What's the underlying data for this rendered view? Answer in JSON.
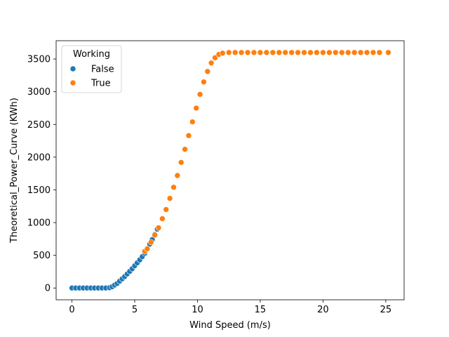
{
  "chart_data": {
    "type": "scatter",
    "title": "",
    "xlabel": "Wind Speed (m/s)",
    "ylabel": "Theoretical_Power_Curve (KWh)",
    "xlim": [
      -1.26,
      26.46
    ],
    "ylim": [
      -180,
      3780
    ],
    "x_ticks": [
      0,
      5,
      10,
      15,
      20,
      25
    ],
    "y_ticks": [
      0,
      500,
      1000,
      1500,
      2000,
      2500,
      3000,
      3500
    ],
    "grid": false,
    "legend": {
      "title": "Working",
      "placement": "upper-left"
    },
    "series": [
      {
        "name": "False",
        "color": "#1f77b4",
        "points": [
          [
            0.0,
            0
          ],
          [
            0.3,
            0
          ],
          [
            0.6,
            0
          ],
          [
            0.9,
            0
          ],
          [
            1.2,
            0
          ],
          [
            1.5,
            0
          ],
          [
            1.8,
            0
          ],
          [
            2.1,
            0
          ],
          [
            2.4,
            0
          ],
          [
            2.7,
            0
          ],
          [
            3.0,
            5
          ],
          [
            3.2,
            20
          ],
          [
            3.4,
            45
          ],
          [
            3.6,
            70
          ],
          [
            3.8,
            105
          ],
          [
            4.0,
            140
          ],
          [
            4.2,
            175
          ],
          [
            4.4,
            215
          ],
          [
            4.6,
            255
          ],
          [
            4.8,
            295
          ],
          [
            5.0,
            340
          ],
          [
            5.2,
            385
          ],
          [
            5.4,
            430
          ],
          [
            5.6,
            480
          ],
          [
            5.8,
            530
          ],
          [
            6.0,
            600
          ],
          [
            6.2,
            670
          ],
          [
            6.4,
            740
          ],
          [
            6.6,
            820
          ],
          [
            6.8,
            900
          ]
        ]
      },
      {
        "name": "True",
        "color": "#ff7f0e",
        "points": [
          [
            5.8,
            560
          ],
          [
            6.0,
            600
          ],
          [
            6.3,
            700
          ],
          [
            6.6,
            810
          ],
          [
            6.9,
            920
          ],
          [
            7.2,
            1060
          ],
          [
            7.5,
            1200
          ],
          [
            7.8,
            1370
          ],
          [
            8.1,
            1540
          ],
          [
            8.4,
            1720
          ],
          [
            8.7,
            1920
          ],
          [
            9.0,
            2120
          ],
          [
            9.3,
            2330
          ],
          [
            9.6,
            2540
          ],
          [
            9.9,
            2750
          ],
          [
            10.2,
            2960
          ],
          [
            10.5,
            3150
          ],
          [
            10.8,
            3310
          ],
          [
            11.1,
            3440
          ],
          [
            11.4,
            3520
          ],
          [
            11.7,
            3570
          ],
          [
            12.0,
            3590
          ],
          [
            12.5,
            3600
          ],
          [
            13.0,
            3600
          ],
          [
            13.5,
            3600
          ],
          [
            14.0,
            3600
          ],
          [
            14.5,
            3600
          ],
          [
            15.0,
            3600
          ],
          [
            15.5,
            3600
          ],
          [
            16.0,
            3600
          ],
          [
            16.5,
            3600
          ],
          [
            17.0,
            3600
          ],
          [
            17.5,
            3600
          ],
          [
            18.0,
            3600
          ],
          [
            18.5,
            3600
          ],
          [
            19.0,
            3600
          ],
          [
            19.5,
            3600
          ],
          [
            20.0,
            3600
          ],
          [
            20.5,
            3600
          ],
          [
            21.0,
            3600
          ],
          [
            21.5,
            3600
          ],
          [
            22.0,
            3600
          ],
          [
            22.5,
            3600
          ],
          [
            23.0,
            3600
          ],
          [
            23.5,
            3600
          ],
          [
            24.0,
            3600
          ],
          [
            24.5,
            3600
          ],
          [
            25.2,
            3600
          ]
        ]
      }
    ]
  }
}
